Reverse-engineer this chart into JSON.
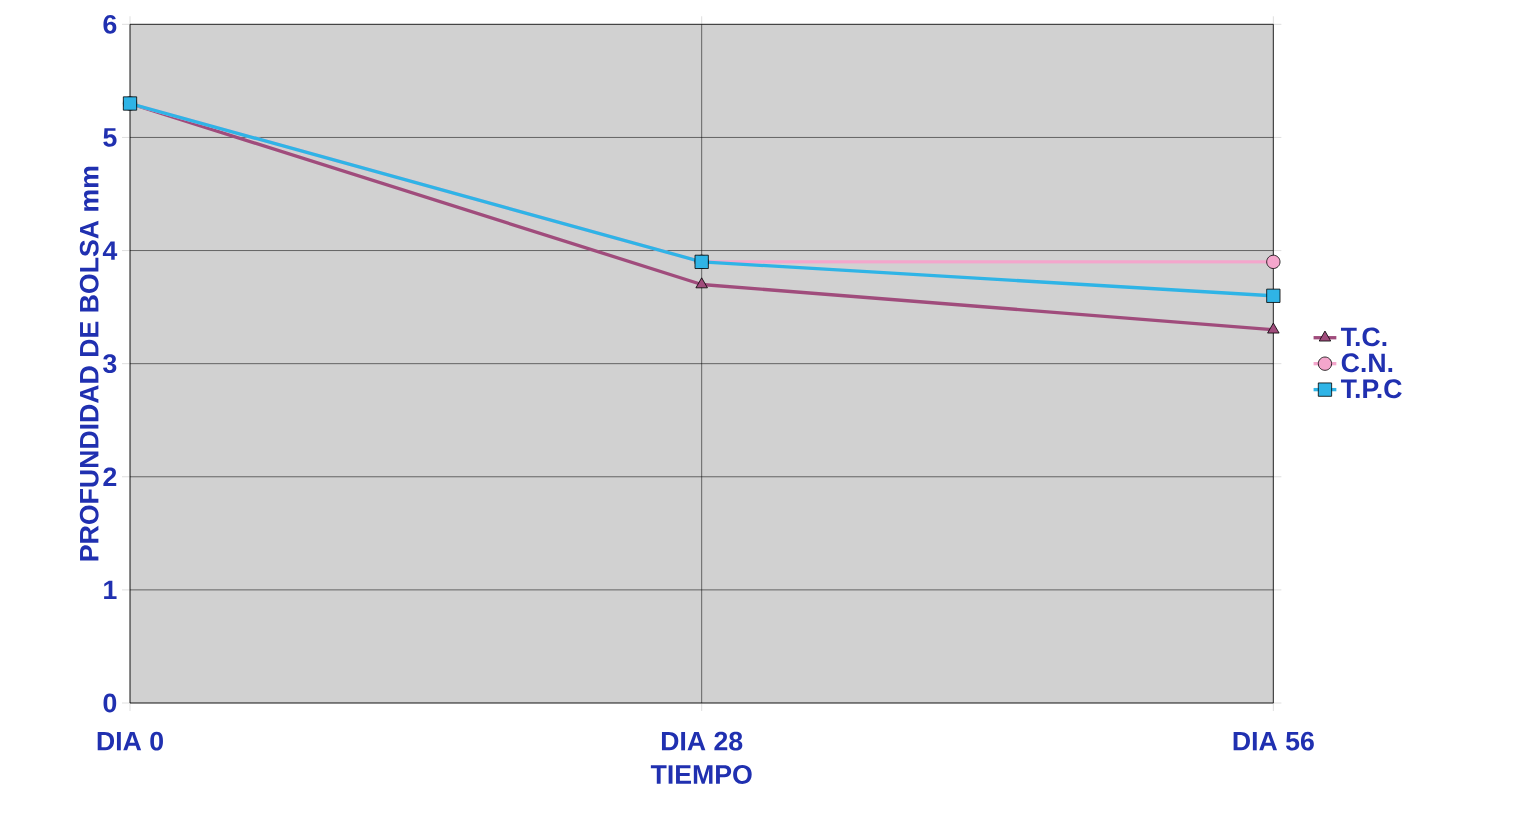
{
  "chart_data": {
    "type": "line",
    "xlabel": "TIEMPO",
    "ylabel": "PROFUNDIDAD DE BOLSA mm",
    "categories": [
      "DIA 0",
      "DIA 28",
      "DIA 56"
    ],
    "series": [
      {
        "name": "T.C.",
        "color": "#a04c7c",
        "marker": "triangle",
        "values": [
          5.3,
          3.7,
          3.3
        ]
      },
      {
        "name": "C.N.",
        "color": "#f4a6cc",
        "marker": "circle",
        "values": [
          5.3,
          3.9,
          3.9
        ]
      },
      {
        "name": "T.P.C",
        "color": "#2fb4e6",
        "marker": "square",
        "values": [
          5.3,
          3.9,
          3.6
        ]
      }
    ],
    "ylim": [
      0,
      6
    ],
    "yticks": [
      0,
      1,
      2,
      3,
      4,
      5,
      6
    ],
    "grid": true,
    "legend": "right"
  }
}
